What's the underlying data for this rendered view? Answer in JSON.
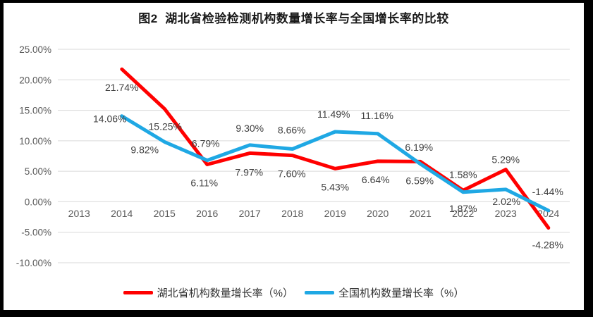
{
  "title": "图2  湖北省检验检测机构数量增长率与全国增长率的比较",
  "chart_data": {
    "type": "line",
    "title": "图2  湖北省检验检测机构数量增长率与全国增长率的比较",
    "categories": [
      "2013",
      "2014",
      "2015",
      "2016",
      "2017",
      "2018",
      "2019",
      "2020",
      "2021",
      "2022",
      "2023",
      "2024"
    ],
    "series": [
      {
        "name": "湖北省机构数量增长率（%）",
        "color": "#FF0000",
        "values": [
          null,
          21.74,
          15.25,
          6.11,
          7.97,
          7.6,
          5.43,
          6.64,
          6.59,
          1.87,
          5.29,
          -4.28
        ]
      },
      {
        "name": "全国机构数量增长率（%）",
        "color": "#1FA8E4",
        "values": [
          null,
          14.06,
          9.82,
          6.79,
          9.3,
          8.66,
          11.49,
          11.16,
          6.19,
          1.58,
          2.02,
          -1.44
        ]
      }
    ],
    "value_suffix": "%",
    "ylim": [
      -10,
      25
    ],
    "y_ticks": [
      25,
      20,
      15,
      10,
      5,
      0,
      -5,
      -10
    ],
    "grid": true,
    "legend_position": "bottom",
    "colors": {
      "gridline": "#D9D9D9",
      "axis_text": "#595959",
      "data_label_text": "#404040",
      "frame": "#000000",
      "background": "#FFFFFF"
    }
  }
}
